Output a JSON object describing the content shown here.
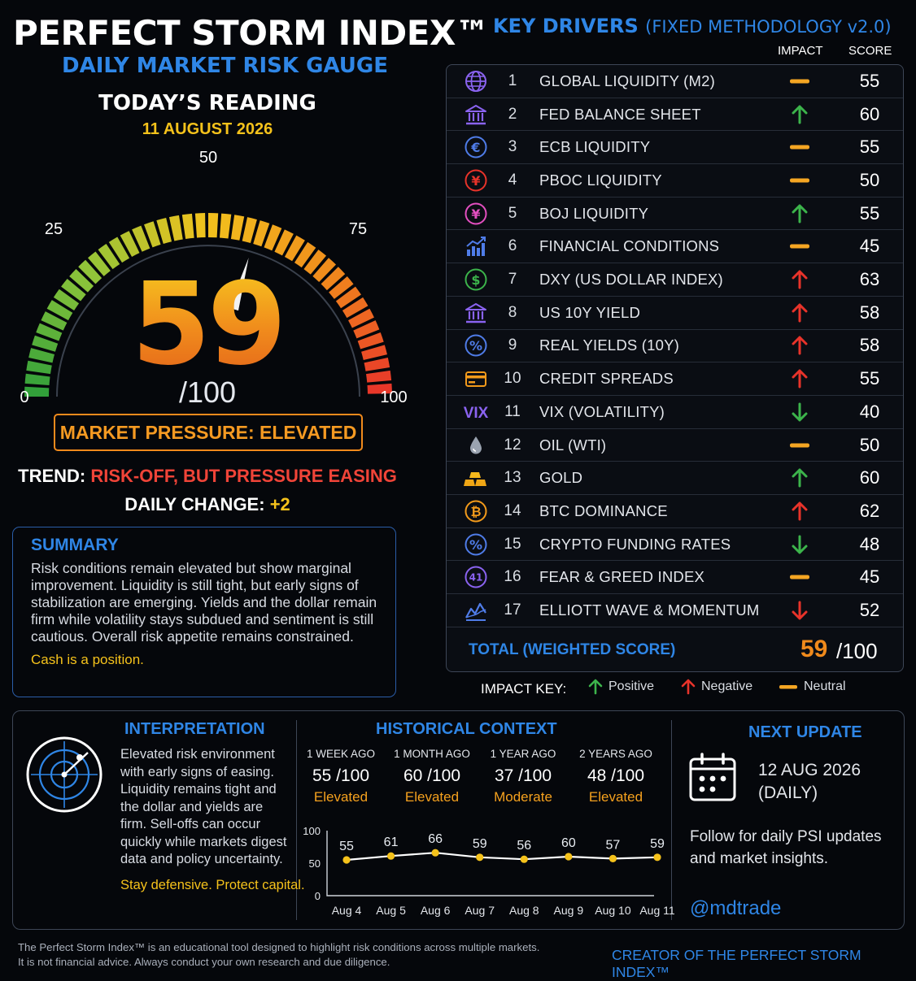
{
  "header": {
    "title": "PERFECT STORM INDEX™",
    "subtitle": "DAILY MARKET RISK GAUGE",
    "reading_label": "TODAY’S READING",
    "reading_date": "11 AUGUST 2026"
  },
  "gauge": {
    "min": 0,
    "max": 100,
    "value": 59,
    "value_text": "59",
    "denominator_text": "/100",
    "ticks": [
      {
        "label": "0",
        "value": 0
      },
      {
        "label": "25",
        "value": 25
      },
      {
        "label": "50",
        "value": 50
      },
      {
        "label": "75",
        "value": 75
      },
      {
        "label": "100",
        "value": 100
      }
    ],
    "colors": [
      "#2e9e3a",
      "#8cc43a",
      "#f2c21d",
      "#f08a1c",
      "#e8332a"
    ]
  },
  "status": {
    "pressure": "MARKET PRESSURE: ELEVATED",
    "trend_label": "TREND:",
    "trend_value": "RISK-OFF, BUT PRESSURE EASING",
    "change_label": "DAILY CHANGE:",
    "change_value": "+2"
  },
  "summary": {
    "title": "SUMMARY",
    "body": "Risk conditions remain elevated but show marginal improvement. Liquidity is still tight, but early signs of stabilization are emerging. Yields and the dollar remain firm while volatility stays subdued and sentiment is still cautious. Overall risk appetite remains constrained.",
    "tagline": "Cash is a position."
  },
  "drivers": {
    "title": "KEY DRIVERS",
    "subtitle": "(FIXED METHODOLOGY v2.0)",
    "col_impact": "IMPACT",
    "col_score": "SCORE",
    "rows": [
      {
        "num": "1",
        "name": "GLOBAL LIQUIDITY (M2)",
        "impact": "neutral",
        "score": "55",
        "icon": "globe-icon"
      },
      {
        "num": "2",
        "name": "FED BALANCE SHEET",
        "impact": "positive",
        "score": "60",
        "icon": "bank-icon"
      },
      {
        "num": "3",
        "name": "ECB LIQUIDITY",
        "impact": "neutral",
        "score": "55",
        "icon": "euro-icon",
        "glyph": "€"
      },
      {
        "num": "4",
        "name": "PBOC LIQUIDITY",
        "impact": "neutral",
        "score": "50",
        "icon": "yuan-icon",
        "glyph": "¥"
      },
      {
        "num": "5",
        "name": "BOJ LIQUIDITY",
        "impact": "positive",
        "score": "55",
        "icon": "yen-icon",
        "glyph": "¥"
      },
      {
        "num": "6",
        "name": "FINANCIAL CONDITIONS",
        "impact": "neutral",
        "score": "45",
        "icon": "bar-chart-icon"
      },
      {
        "num": "7",
        "name": "DXY (US DOLLAR INDEX)",
        "impact": "negative",
        "score": "63",
        "icon": "dollar-icon",
        "glyph": "$"
      },
      {
        "num": "8",
        "name": "US 10Y YIELD",
        "impact": "negative",
        "score": "58",
        "icon": "bank-icon"
      },
      {
        "num": "9",
        "name": "REAL YIELDS (10Y)",
        "impact": "negative",
        "score": "58",
        "icon": "percent-icon",
        "glyph": "%"
      },
      {
        "num": "10",
        "name": "CREDIT SPREADS",
        "impact": "negative",
        "score": "55",
        "icon": "credit-card-icon"
      },
      {
        "num": "11",
        "name": "VIX (VOLATILITY)",
        "impact": "positive-down",
        "score": "40",
        "icon": "vix-icon",
        "glyph": "VIX"
      },
      {
        "num": "12",
        "name": "OIL (WTI)",
        "impact": "neutral",
        "score": "50",
        "icon": "oil-drop-icon"
      },
      {
        "num": "13",
        "name": "GOLD",
        "impact": "positive",
        "score": "60",
        "icon": "gold-bars-icon"
      },
      {
        "num": "14",
        "name": "BTC DOMINANCE",
        "impact": "negative",
        "score": "62",
        "icon": "bitcoin-icon",
        "glyph": "₿"
      },
      {
        "num": "15",
        "name": "CRYPTO FUNDING RATES",
        "impact": "positive-down",
        "score": "48",
        "icon": "percent-icon",
        "glyph": "%"
      },
      {
        "num": "16",
        "name": "FEAR & GREED INDEX",
        "impact": "neutral",
        "score": "45",
        "icon": "fear-greed-icon",
        "glyph": "41"
      },
      {
        "num": "17",
        "name": "ELLIOTT WAVE & MOMENTUM",
        "impact": "negative-down",
        "score": "52",
        "icon": "wave-chart-icon"
      }
    ],
    "total_label": "TOTAL (WEIGHTED SCORE)",
    "total_value": "59",
    "total_den": "/100"
  },
  "impact_key": {
    "label": "IMPACT KEY:",
    "positive": "Positive",
    "negative": "Negative",
    "neutral": "Neutral",
    "colors": {
      "positive": "#3cb44b",
      "negative": "#e8332a",
      "neutral": "#f5a623"
    }
  },
  "interpretation": {
    "title": "INTERPRETATION",
    "body": "Elevated risk environment with early signs of easing. Liquidity remains tight and the dollar and yields are firm. Sell-offs can occur quickly while markets digest data and policy uncertainty.",
    "tagline": "Stay defensive. Protect capital."
  },
  "history": {
    "title": "HISTORICAL CONTEXT",
    "items": [
      {
        "label": "1 WEEK AGO",
        "value": "55",
        "den": "/100",
        "status": "Elevated"
      },
      {
        "label": "1 MONTH AGO",
        "value": "60",
        "den": "/100",
        "status": "Elevated"
      },
      {
        "label": "1 YEAR AGO",
        "value": "37",
        "den": "/100",
        "status": "Moderate"
      },
      {
        "label": "2 YEARS AGO",
        "value": "48",
        "den": "/100",
        "status": "Elevated"
      }
    ]
  },
  "chart_data": {
    "type": "line",
    "x": [
      "Aug 4",
      "Aug 5",
      "Aug 6",
      "Aug 7",
      "Aug 8",
      "Aug 9",
      "Aug 10",
      "Aug 11"
    ],
    "series": [
      {
        "values": [
          55,
          61,
          66,
          59,
          56,
          60,
          57,
          59
        ]
      }
    ],
    "ylim": [
      0,
      100
    ],
    "yticks": [
      0,
      50,
      100
    ],
    "title": "",
    "xlabel": "",
    "ylabel": "",
    "line_color": "#ffffff",
    "marker_color": "#f5c21b"
  },
  "next_update": {
    "title": "NEXT UPDATE",
    "date": "12 AUG 2026",
    "freq": "(DAILY)",
    "follow": "Follow for daily PSI updates and market insights.",
    "handle": "@mdtrade"
  },
  "footer": {
    "disclaimer_1": "The Perfect Storm Index™ is an educational tool designed to highlight risk conditions across multiple markets.",
    "disclaimer_2": "It is not financial advice. Always conduct your own research and due diligence.",
    "creator": "CREATOR OF THE PERFECT STORM INDEX™"
  }
}
